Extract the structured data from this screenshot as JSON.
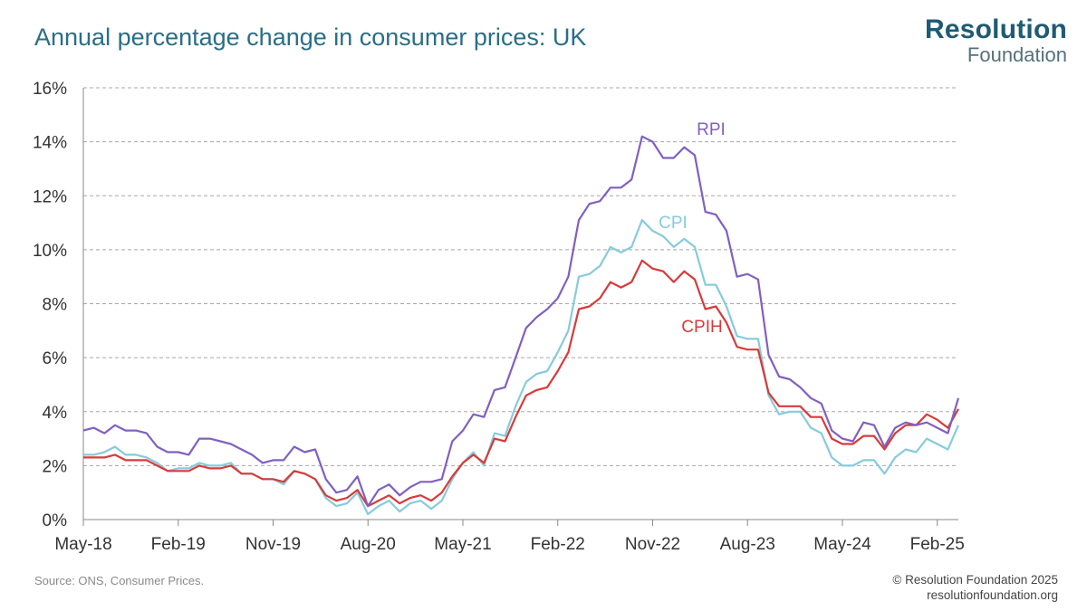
{
  "title": "Annual percentage change in consumer prices: UK",
  "logo": {
    "line1": "Resolution",
    "line2": "Foundation"
  },
  "footer": {
    "source": "Source: ONS, Consumer Prices.",
    "copyright": "© Resolution Foundation 2025",
    "website": "resolutionfoundation.org"
  },
  "colors": {
    "RPI": "#8060c0",
    "CPI": "#86cbdc",
    "CPIH": "#d83a3a",
    "title": "#2a6e86"
  },
  "chart_data": {
    "type": "line",
    "title": "Annual percentage change in consumer prices: UK",
    "xlabel": "",
    "ylabel": "",
    "ylim": [
      0,
      16
    ],
    "yticks": [
      0,
      2,
      4,
      6,
      8,
      10,
      12,
      14,
      16
    ],
    "ytick_labels": [
      "0%",
      "2%",
      "4%",
      "6%",
      "8%",
      "10%",
      "12%",
      "14%",
      "16%"
    ],
    "xtick_labels": [
      "May-18",
      "Feb-19",
      "Nov-19",
      "Aug-20",
      "May-21",
      "Feb-22",
      "Nov-22",
      "Aug-23",
      "May-24",
      "Feb-25"
    ],
    "xtick_index": [
      0,
      9,
      18,
      27,
      36,
      45,
      54,
      63,
      72,
      81
    ],
    "grid": true,
    "x_start": "May-18",
    "x_end": "Apr-25",
    "series": [
      {
        "name": "RPI",
        "values": [
          3.3,
          3.4,
          3.2,
          3.5,
          3.3,
          3.3,
          3.2,
          2.7,
          2.5,
          2.5,
          2.4,
          3.0,
          3.0,
          2.9,
          2.8,
          2.6,
          2.4,
          2.1,
          2.2,
          2.2,
          2.7,
          2.5,
          2.6,
          1.5,
          1.0,
          1.1,
          1.6,
          0.5,
          1.1,
          1.3,
          0.9,
          1.2,
          1.4,
          1.4,
          1.5,
          2.9,
          3.3,
          3.9,
          3.8,
          4.8,
          4.9,
          6.0,
          7.1,
          7.5,
          7.8,
          8.2,
          9.0,
          11.1,
          11.7,
          11.8,
          12.3,
          12.3,
          12.6,
          14.2,
          14.0,
          13.4,
          13.4,
          13.8,
          13.5,
          11.4,
          11.3,
          10.7,
          9.0,
          9.1,
          8.9,
          6.1,
          5.3,
          5.2,
          4.9,
          4.5,
          4.3,
          3.3,
          3.0,
          2.9,
          3.6,
          3.5,
          2.7,
          3.4,
          3.6,
          3.5,
          3.6,
          3.4,
          3.2,
          4.5
        ]
      },
      {
        "name": "CPI",
        "values": [
          2.4,
          2.4,
          2.5,
          2.7,
          2.4,
          2.4,
          2.3,
          2.1,
          1.8,
          1.9,
          1.9,
          2.1,
          2.0,
          2.0,
          2.1,
          1.7,
          1.7,
          1.5,
          1.5,
          1.3,
          1.8,
          1.7,
          1.5,
          0.8,
          0.5,
          0.6,
          1.0,
          0.2,
          0.5,
          0.7,
          0.3,
          0.6,
          0.7,
          0.4,
          0.7,
          1.5,
          2.1,
          2.5,
          2.0,
          3.2,
          3.1,
          4.2,
          5.1,
          5.4,
          5.5,
          6.2,
          7.0,
          9.0,
          9.1,
          9.4,
          10.1,
          9.9,
          10.1,
          11.1,
          10.7,
          10.5,
          10.1,
          10.4,
          10.1,
          8.7,
          8.7,
          7.9,
          6.8,
          6.7,
          6.7,
          4.6,
          3.9,
          4.0,
          4.0,
          3.4,
          3.2,
          2.3,
          2.0,
          2.0,
          2.2,
          2.2,
          1.7,
          2.3,
          2.6,
          2.5,
          3.0,
          2.8,
          2.6,
          3.5
        ]
      },
      {
        "name": "CPIH",
        "values": [
          2.3,
          2.3,
          2.3,
          2.4,
          2.2,
          2.2,
          2.2,
          2.0,
          1.8,
          1.8,
          1.8,
          2.0,
          1.9,
          1.9,
          2.0,
          1.7,
          1.7,
          1.5,
          1.5,
          1.4,
          1.8,
          1.7,
          1.5,
          0.9,
          0.7,
          0.8,
          1.1,
          0.5,
          0.7,
          0.9,
          0.6,
          0.8,
          0.9,
          0.7,
          1.0,
          1.6,
          2.1,
          2.4,
          2.1,
          3.0,
          2.9,
          3.8,
          4.6,
          4.8,
          4.9,
          5.5,
          6.2,
          7.8,
          7.9,
          8.2,
          8.8,
          8.6,
          8.8,
          9.6,
          9.3,
          9.2,
          8.8,
          9.2,
          8.9,
          7.8,
          7.9,
          7.3,
          6.4,
          6.3,
          6.3,
          4.7,
          4.2,
          4.2,
          4.2,
          3.8,
          3.8,
          3.0,
          2.8,
          2.8,
          3.1,
          3.1,
          2.6,
          3.2,
          3.5,
          3.5,
          3.9,
          3.7,
          3.4,
          4.1
        ]
      }
    ],
    "annotations": [
      {
        "text": "RPI",
        "series": "RPI"
      },
      {
        "text": "CPI",
        "series": "CPI"
      },
      {
        "text": "CPIH",
        "series": "CPIH"
      }
    ]
  }
}
